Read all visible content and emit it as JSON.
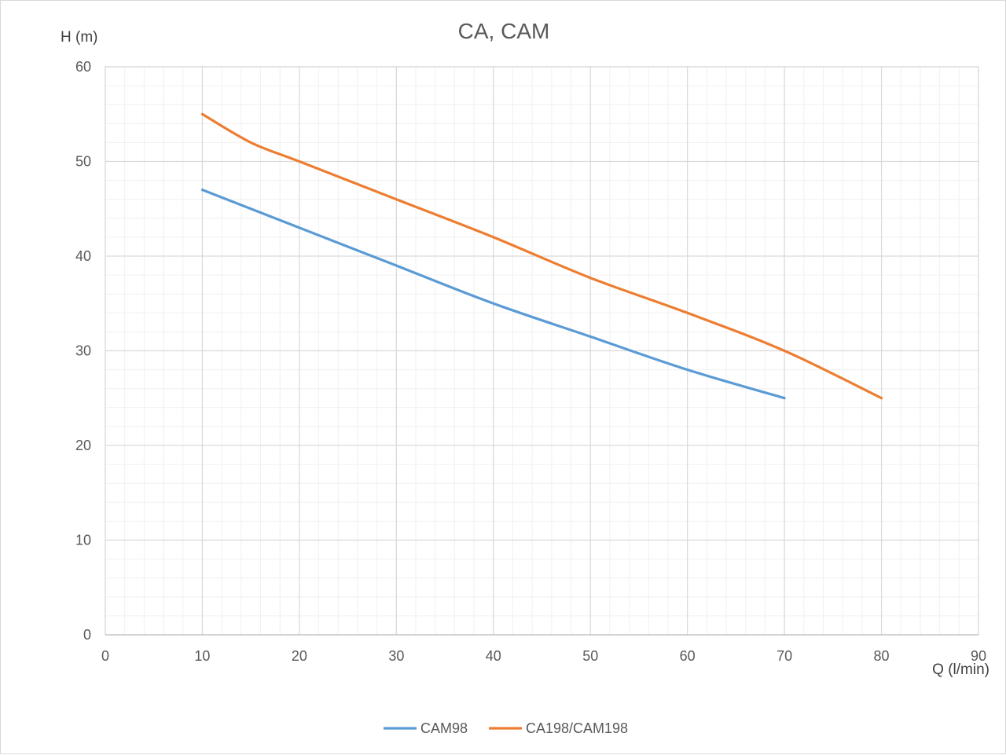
{
  "chart_data": {
    "type": "line",
    "title": "CA, CAM",
    "xlabel": "Q (l/min)",
    "ylabel": "H (m)",
    "xlim": [
      0,
      90
    ],
    "ylim": [
      0,
      60
    ],
    "x_major_ticks": [
      0,
      10,
      20,
      30,
      40,
      50,
      60,
      70,
      80,
      90
    ],
    "y_major_ticks": [
      0,
      10,
      20,
      30,
      40,
      50,
      60
    ],
    "x_minor_step": 2,
    "y_minor_step": 2,
    "grid": true,
    "legend_position": "bottom",
    "series": [
      {
        "name": "CAM98",
        "color": "#5b9bd5",
        "points": [
          [
            10,
            47
          ],
          [
            20,
            43
          ],
          [
            30,
            39
          ],
          [
            40,
            35
          ],
          [
            50,
            31.5
          ],
          [
            60,
            28
          ],
          [
            70,
            25
          ]
        ]
      },
      {
        "name": "CA198/CAM198",
        "color": "#ed7d31",
        "points": [
          [
            10,
            55
          ],
          [
            15,
            52
          ],
          [
            20,
            50
          ],
          [
            30,
            46
          ],
          [
            40,
            42
          ],
          [
            50,
            37.7
          ],
          [
            60,
            34
          ],
          [
            70,
            30
          ],
          [
            80,
            25
          ]
        ]
      }
    ]
  }
}
